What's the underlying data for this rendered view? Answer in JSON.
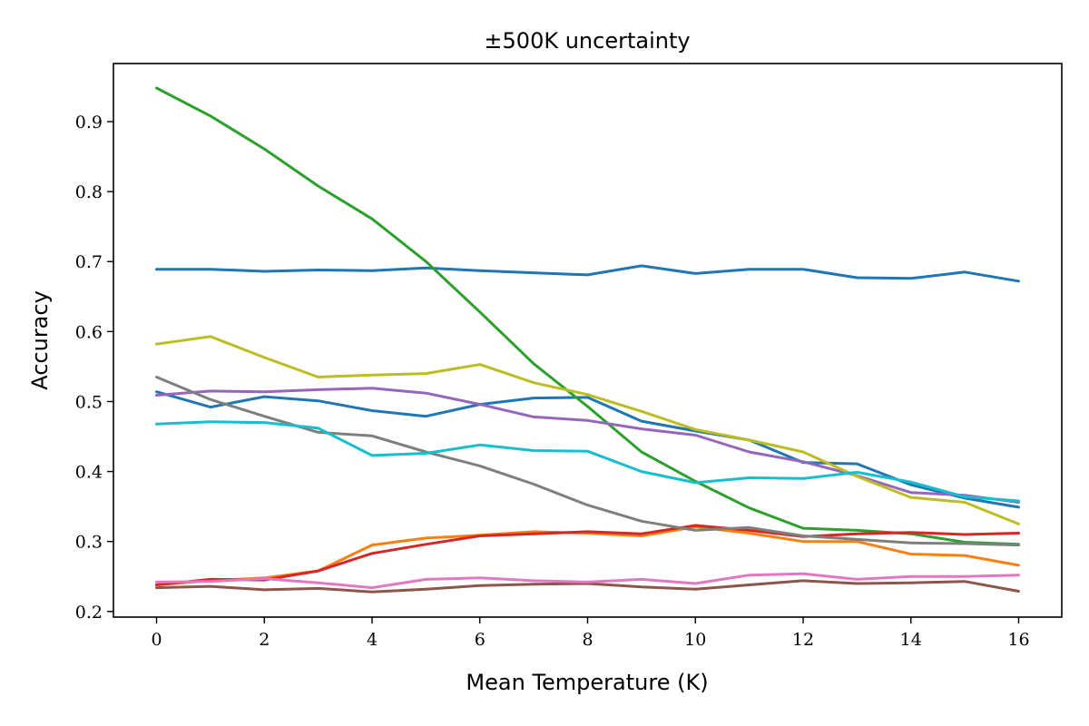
{
  "chart_data": {
    "type": "line",
    "title": "±500K uncertainty",
    "xlabel": "Mean Temperature (K)",
    "ylabel": "Accuracy",
    "xlim": [
      -0.8,
      16.8
    ],
    "ylim": [
      0.192,
      0.983
    ],
    "xticks": [
      0,
      2,
      4,
      6,
      8,
      10,
      12,
      14,
      16
    ],
    "xtick_labels": [
      "0",
      "2",
      "4",
      "6",
      "8",
      "10",
      "12",
      "14",
      "16"
    ],
    "yticks": [
      0.2,
      0.3,
      0.4,
      0.5,
      0.6,
      0.7,
      0.8,
      0.9
    ],
    "ytick_labels": [
      "0.2",
      "0.3",
      "0.4",
      "0.5",
      "0.6",
      "0.7",
      "0.8",
      "0.9"
    ],
    "grid": false,
    "legend": false,
    "x": [
      0,
      1,
      2,
      3,
      4,
      5,
      6,
      7,
      8,
      9,
      10,
      11,
      12,
      13,
      14,
      15,
      16
    ],
    "series": [
      {
        "color": "#1f77b4",
        "values": [
          0.689,
          0.689,
          0.686,
          0.688,
          0.687,
          0.691,
          0.687,
          0.684,
          0.681,
          0.694,
          0.683,
          0.689,
          0.689,
          0.677,
          0.676,
          0.685,
          0.672
        ]
      },
      {
        "color": "#1f77b4",
        "values": [
          0.514,
          0.492,
          0.507,
          0.501,
          0.487,
          0.479,
          0.496,
          0.505,
          0.506,
          0.472,
          0.458,
          0.445,
          0.413,
          0.411,
          0.381,
          0.362,
          0.349
        ]
      },
      {
        "color": "#ff7f0e",
        "values": [
          0.238,
          0.244,
          0.248,
          0.258,
          0.295,
          0.305,
          0.309,
          0.314,
          0.312,
          0.308,
          0.321,
          0.312,
          0.3,
          0.3,
          0.282,
          0.28,
          0.266
        ]
      },
      {
        "color": "#2ca02c",
        "values": [
          0.948,
          0.908,
          0.861,
          0.808,
          0.761,
          0.7,
          0.628,
          0.554,
          0.493,
          0.428,
          0.386,
          0.348,
          0.319,
          0.316,
          0.311,
          0.299,
          0.296
        ]
      },
      {
        "color": "#d62728",
        "values": [
          0.238,
          0.246,
          0.245,
          0.258,
          0.283,
          0.296,
          0.308,
          0.311,
          0.314,
          0.311,
          0.323,
          0.316,
          0.307,
          0.311,
          0.313,
          0.31,
          0.312
        ]
      },
      {
        "color": "#9467bd",
        "values": [
          0.509,
          0.515,
          0.514,
          0.517,
          0.519,
          0.512,
          0.496,
          0.478,
          0.473,
          0.461,
          0.452,
          0.428,
          0.414,
          0.394,
          0.37,
          0.366,
          0.356
        ]
      },
      {
        "color": "#8c564b",
        "values": [
          0.234,
          0.236,
          0.231,
          0.233,
          0.228,
          0.232,
          0.237,
          0.239,
          0.24,
          0.235,
          0.232,
          0.238,
          0.244,
          0.24,
          0.241,
          0.243,
          0.229
        ]
      },
      {
        "color": "#e377c2",
        "values": [
          0.242,
          0.243,
          0.247,
          0.241,
          0.234,
          0.246,
          0.248,
          0.244,
          0.242,
          0.246,
          0.24,
          0.252,
          0.254,
          0.246,
          0.25,
          0.25,
          0.252
        ]
      },
      {
        "color": "#7f7f7f",
        "values": [
          0.535,
          0.503,
          0.479,
          0.456,
          0.451,
          0.428,
          0.408,
          0.382,
          0.352,
          0.329,
          0.316,
          0.32,
          0.308,
          0.303,
          0.298,
          0.297,
          0.295
        ]
      },
      {
        "color": "#bcbd22",
        "values": [
          0.582,
          0.593,
          0.563,
          0.535,
          0.538,
          0.54,
          0.553,
          0.527,
          0.51,
          0.486,
          0.46,
          0.445,
          0.428,
          0.393,
          0.363,
          0.356,
          0.325
        ]
      },
      {
        "color": "#17becf",
        "values": [
          0.468,
          0.471,
          0.47,
          0.462,
          0.423,
          0.426,
          0.438,
          0.43,
          0.429,
          0.4,
          0.384,
          0.391,
          0.39,
          0.399,
          0.385,
          0.364,
          0.358
        ]
      }
    ]
  }
}
